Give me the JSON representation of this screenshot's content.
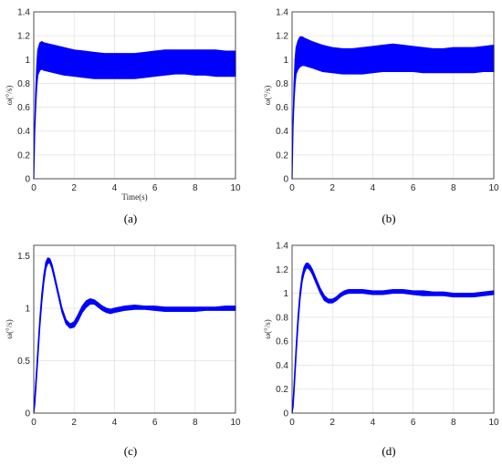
{
  "figure": {
    "panels": [
      "(a)",
      "(b)",
      "(c)",
      "(d)"
    ],
    "line_color": "#0000ff"
  },
  "chart_data": [
    {
      "type": "line",
      "panel": "(a)",
      "xlabel": "Time(s)",
      "ylabel": "ω(°/s)",
      "xlim": [
        0,
        10
      ],
      "ylim": [
        0,
        1.4
      ],
      "xticks": [
        "0",
        "2",
        "4",
        "6",
        "8",
        "10"
      ],
      "yticks": [
        "0",
        "0.2",
        "0.4",
        "0.6",
        "0.8",
        "1",
        "1.2",
        "1.4"
      ],
      "grid": true,
      "x": [
        0,
        0.05,
        0.1,
        0.15,
        0.2,
        0.3,
        0.4,
        0.5,
        1,
        1.5,
        2,
        2.5,
        3,
        3.5,
        4,
        4.5,
        5,
        5.5,
        6,
        6.5,
        7,
        7.5,
        8,
        8.5,
        9,
        9.5,
        10
      ],
      "upper": [
        0,
        0.45,
        0.75,
        0.95,
        1.08,
        1.14,
        1.15,
        1.14,
        1.12,
        1.1,
        1.08,
        1.07,
        1.06,
        1.05,
        1.05,
        1.05,
        1.05,
        1.06,
        1.07,
        1.08,
        1.08,
        1.08,
        1.08,
        1.08,
        1.08,
        1.07,
        1.07
      ],
      "lower": [
        0,
        0.4,
        0.62,
        0.78,
        0.87,
        0.91,
        0.92,
        0.91,
        0.89,
        0.87,
        0.86,
        0.85,
        0.84,
        0.84,
        0.84,
        0.84,
        0.84,
        0.85,
        0.86,
        0.87,
        0.88,
        0.88,
        0.87,
        0.87,
        0.86,
        0.86,
        0.86
      ]
    },
    {
      "type": "line",
      "panel": "(b)",
      "xlabel": "",
      "ylabel": "ω(°/s)",
      "xlim": [
        0,
        10
      ],
      "ylim": [
        0,
        1.4
      ],
      "xticks": [
        "0",
        "2",
        "4",
        "6",
        "8",
        "10"
      ],
      "yticks": [
        "0",
        "0.2",
        "0.4",
        "0.6",
        "0.8",
        "1",
        "1.2",
        "1.4"
      ],
      "grid": true,
      "x": [
        0,
        0.05,
        0.1,
        0.15,
        0.2,
        0.3,
        0.4,
        0.5,
        0.6,
        1,
        1.5,
        2,
        2.5,
        3,
        3.5,
        4,
        4.5,
        5,
        5.5,
        6,
        6.5,
        7,
        7.5,
        8,
        8.5,
        9,
        9.5,
        10
      ],
      "upper": [
        0,
        0.5,
        0.8,
        1.0,
        1.1,
        1.16,
        1.19,
        1.19,
        1.18,
        1.15,
        1.12,
        1.1,
        1.09,
        1.09,
        1.1,
        1.11,
        1.12,
        1.13,
        1.12,
        1.11,
        1.1,
        1.09,
        1.09,
        1.1,
        1.1,
        1.1,
        1.11,
        1.12
      ],
      "lower": [
        0,
        0.45,
        0.66,
        0.8,
        0.88,
        0.92,
        0.94,
        0.95,
        0.95,
        0.93,
        0.9,
        0.89,
        0.88,
        0.88,
        0.88,
        0.89,
        0.9,
        0.9,
        0.9,
        0.9,
        0.89,
        0.89,
        0.89,
        0.89,
        0.89,
        0.89,
        0.9,
        0.9
      ]
    },
    {
      "type": "line",
      "panel": "(c)",
      "xlabel": "",
      "ylabel": "ω(°/s)",
      "xlim": [
        0,
        10
      ],
      "ylim": [
        0,
        1.6
      ],
      "xticks": [
        "0",
        "2",
        "4",
        "6",
        "8",
        "10"
      ],
      "yticks": [
        "0",
        "0.5",
        "1",
        "1.5"
      ],
      "grid": true,
      "x": [
        0,
        0.05,
        0.1,
        0.2,
        0.3,
        0.4,
        0.5,
        0.6,
        0.7,
        0.8,
        0.9,
        1.0,
        1.2,
        1.4,
        1.6,
        1.8,
        2.0,
        2.2,
        2.4,
        2.6,
        2.8,
        3.0,
        3.2,
        3.4,
        3.6,
        3.8,
        4.0,
        4.5,
        5.0,
        5.5,
        6.0,
        6.5,
        7.0,
        7.5,
        8.0,
        8.5,
        9.0,
        9.5,
        10.0
      ],
      "upper": [
        0,
        0.15,
        0.3,
        0.6,
        0.9,
        1.14,
        1.32,
        1.44,
        1.48,
        1.47,
        1.42,
        1.34,
        1.17,
        1.0,
        0.89,
        0.85,
        0.87,
        0.94,
        1.02,
        1.07,
        1.09,
        1.08,
        1.05,
        1.02,
        1.0,
        0.99,
        1.0,
        1.02,
        1.03,
        1.02,
        1.02,
        1.01,
        1.01,
        1.01,
        1.01,
        1.01,
        1.01,
        1.02,
        1.02
      ],
      "lower": [
        0,
        0.08,
        0.22,
        0.52,
        0.82,
        1.06,
        1.25,
        1.38,
        1.43,
        1.43,
        1.38,
        1.3,
        1.13,
        0.96,
        0.85,
        0.81,
        0.82,
        0.88,
        0.96,
        1.01,
        1.04,
        1.04,
        1.01,
        0.98,
        0.96,
        0.95,
        0.96,
        0.98,
        0.99,
        0.99,
        0.98,
        0.97,
        0.97,
        0.97,
        0.97,
        0.98,
        0.98,
        0.98,
        0.98
      ]
    },
    {
      "type": "line",
      "panel": "(d)",
      "xlabel": "",
      "ylabel": "ω(°/s)",
      "xlim": [
        0,
        10
      ],
      "ylim": [
        0,
        1.4
      ],
      "xticks": [
        "0",
        "2",
        "4",
        "6",
        "8",
        "10"
      ],
      "yticks": [
        "0",
        "0.2",
        "0.4",
        "0.6",
        "0.8",
        "1",
        "1.2",
        "1.4"
      ],
      "grid": true,
      "x": [
        0,
        0.05,
        0.1,
        0.2,
        0.3,
        0.4,
        0.5,
        0.6,
        0.7,
        0.8,
        0.9,
        1.0,
        1.2,
        1.4,
        1.6,
        1.8,
        2.0,
        2.2,
        2.4,
        2.6,
        2.8,
        3.0,
        3.5,
        4.0,
        4.5,
        5.0,
        5.5,
        6.0,
        6.5,
        7.0,
        7.5,
        8.0,
        8.5,
        9.0,
        9.5,
        10.0
      ],
      "upper": [
        0,
        0.1,
        0.25,
        0.55,
        0.82,
        1.02,
        1.15,
        1.22,
        1.25,
        1.25,
        1.23,
        1.2,
        1.12,
        1.04,
        0.98,
        0.95,
        0.95,
        0.97,
        1.0,
        1.02,
        1.03,
        1.03,
        1.03,
        1.02,
        1.02,
        1.03,
        1.03,
        1.02,
        1.02,
        1.01,
        1.01,
        1.0,
        1.0,
        1.0,
        1.01,
        1.02
      ],
      "lower": [
        0,
        0.05,
        0.18,
        0.48,
        0.75,
        0.96,
        1.1,
        1.17,
        1.21,
        1.21,
        1.19,
        1.16,
        1.08,
        1.0,
        0.94,
        0.92,
        0.92,
        0.94,
        0.97,
        0.99,
        1.0,
        1.0,
        1.0,
        0.99,
        0.99,
        1.0,
        1.0,
        0.99,
        0.98,
        0.98,
        0.98,
        0.97,
        0.97,
        0.97,
        0.98,
        0.99
      ]
    }
  ]
}
